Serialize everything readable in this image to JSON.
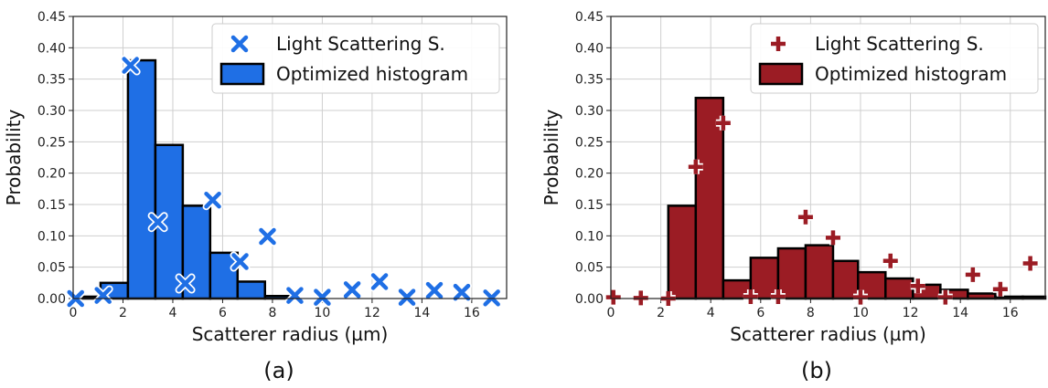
{
  "chart_data": [
    {
      "panel_label": "(a)",
      "type": "bar",
      "xlabel": "Scatterer radius (µm)",
      "ylabel": "Probability",
      "xlim": [
        0,
        17.4
      ],
      "ylim": [
        0,
        0.45
      ],
      "xticks": [
        "0",
        "2",
        "4",
        "6",
        "8",
        "10",
        "12",
        "14",
        "16"
      ],
      "yticks": [
        "0.00",
        "0.05",
        "0.10",
        "0.15",
        "0.20",
        "0.25",
        "0.30",
        "0.35",
        "0.40",
        "0.45"
      ],
      "grid": true,
      "legend_position": "top-right",
      "bar_color": "#1f6fe5",
      "marker_color": "#1f6fe5",
      "series": [
        {
          "name": "Optimized histogram",
          "kind": "histogram",
          "bin_edges": [
            0.0,
            1.1,
            2.2,
            3.3,
            4.4,
            5.5,
            6.6,
            7.7,
            8.8,
            9.9,
            11.0,
            12.1,
            13.2,
            14.3,
            15.4,
            16.5,
            17.4
          ],
          "values": [
            0.003,
            0.025,
            0.38,
            0.245,
            0.148,
            0.073,
            0.027,
            0.004,
            0.0,
            0.0,
            0.0,
            0.0,
            0.0,
            0.0,
            0.0,
            0.0
          ]
        },
        {
          "name": "Light Scattering S.",
          "kind": "scatter",
          "marker": "x",
          "x": [
            0.1,
            1.2,
            2.3,
            3.4,
            4.5,
            5.6,
            6.7,
            7.8,
            8.9,
            10.0,
            11.2,
            12.3,
            13.4,
            14.5,
            15.6,
            16.8
          ],
          "y": [
            0.0,
            0.005,
            0.372,
            0.122,
            0.024,
            0.157,
            0.059,
            0.099,
            0.005,
            0.002,
            0.014,
            0.027,
            0.002,
            0.013,
            0.01,
            0.001
          ]
        }
      ]
    },
    {
      "panel_label": "(b)",
      "type": "bar",
      "xlabel": "Scatterer radius (µm)",
      "ylabel": "Probability",
      "xlim": [
        0,
        17.4
      ],
      "ylim": [
        0,
        0.45
      ],
      "xticks": [
        "0",
        "2",
        "4",
        "6",
        "8",
        "10",
        "12",
        "14",
        "16"
      ],
      "yticks": [
        "0.00",
        "0.05",
        "0.10",
        "0.15",
        "0.20",
        "0.25",
        "0.30",
        "0.35",
        "0.40",
        "0.45"
      ],
      "grid": true,
      "legend_position": "top-right",
      "bar_color": "#9b1c24",
      "marker_color": "#9b1c24",
      "series": [
        {
          "name": "Optimized histogram",
          "kind": "histogram",
          "bin_edges": [
            2.3,
            3.4,
            4.5,
            5.6,
            6.7,
            7.8,
            8.9,
            9.9,
            11.0,
            12.1,
            13.2,
            14.3,
            15.4,
            16.5,
            17.4
          ],
          "values": [
            0.148,
            0.32,
            0.029,
            0.065,
            0.08,
            0.085,
            0.06,
            0.042,
            0.032,
            0.022,
            0.014,
            0.008,
            0.003,
            0.003
          ]
        },
        {
          "name": "Light Scattering S.",
          "kind": "scatter",
          "marker": "+",
          "x": [
            0.1,
            1.2,
            2.3,
            3.4,
            4.5,
            5.6,
            6.7,
            7.8,
            8.9,
            10.0,
            11.2,
            12.3,
            13.4,
            14.5,
            15.6,
            16.8
          ],
          "y": [
            0.002,
            0.001,
            0.0,
            0.21,
            0.28,
            0.003,
            0.003,
            0.13,
            0.097,
            0.002,
            0.06,
            0.02,
            0.002,
            0.038,
            0.015,
            0.056
          ]
        }
      ]
    }
  ]
}
